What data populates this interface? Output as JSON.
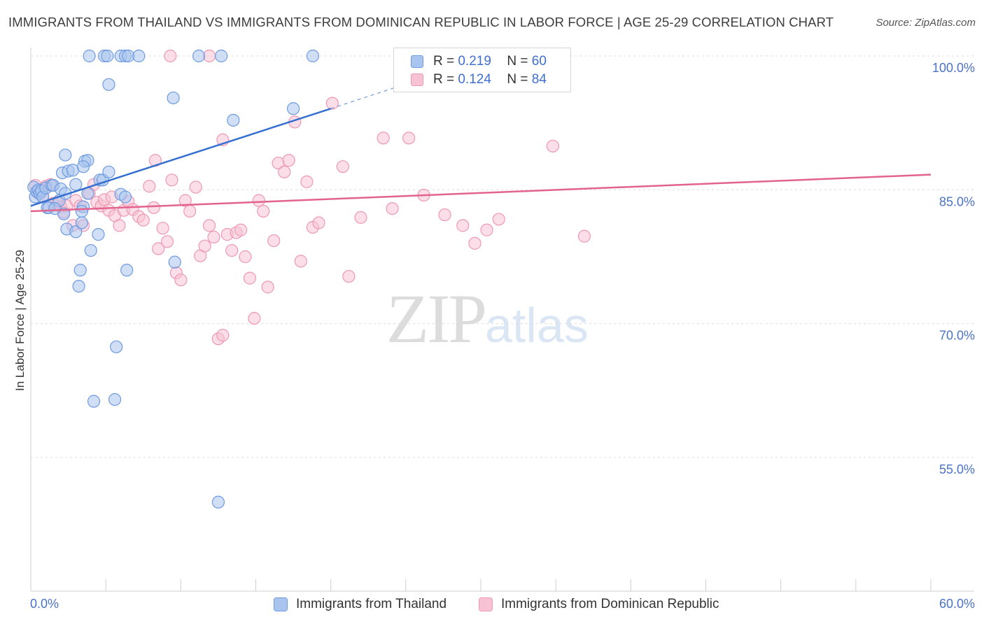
{
  "header": {
    "title": "IMMIGRANTS FROM THAILAND VS IMMIGRANTS FROM DOMINICAN REPUBLIC IN LABOR FORCE | AGE 25-29 CORRELATION CHART",
    "source": "Source: ZipAtlas.com"
  },
  "legend": {
    "series1": {
      "r_label": "R =",
      "r_value": "0.219",
      "n_label": "N =",
      "n_value": "60"
    },
    "series2": {
      "r_label": "R =",
      "r_value": "0.124",
      "n_label": "N =",
      "n_value": "84"
    }
  },
  "bottom_legend": {
    "series1": "Immigrants from Thailand",
    "series2": "Immigrants from Dominican Republic"
  },
  "watermark": {
    "zip": "ZIP",
    "atlas": "atlas"
  },
  "colors": {
    "thailand_fill": "#a9c5ef",
    "thailand_stroke": "#6e9be0",
    "thailand_line": "#3570d1",
    "dominican_fill": "#f7c3d4",
    "dominican_stroke": "#ee98b4",
    "dominican_line": "#e2638e",
    "axis_text": "#4a72c4"
  },
  "chart_data": {
    "type": "scatter",
    "title": "IMMIGRANTS FROM THAILAND VS IMMIGRANTS FROM DOMINICAN REPUBLIC IN LABOR FORCE | AGE 25-29 CORRELATION CHART",
    "xlabel": "",
    "ylabel": "In Labor Force | Age 25-29",
    "xlim": [
      0,
      60
    ],
    "ylim": [
      40,
      102
    ],
    "x_tick_labels": [
      "0.0%",
      "60.0%"
    ],
    "y_ticks": [
      55,
      70,
      85,
      100
    ],
    "y_tick_labels": [
      "55.0%",
      "70.0%",
      "85.0%",
      "100.0%"
    ],
    "grid": true,
    "series": [
      {
        "name": "Immigrants from Thailand",
        "R": 0.219,
        "N": 60,
        "trend": {
          "x": [
            0.0,
            20.0
          ],
          "y": [
            83.2,
            94.1
          ],
          "dashed_to": [
            26.0,
            97.4
          ]
        },
        "points": [
          [
            0.2,
            85.3
          ],
          [
            0.3,
            84.2
          ],
          [
            0.4,
            84.8
          ],
          [
            0.5,
            85.0
          ],
          [
            0.6,
            84.6
          ],
          [
            0.7,
            84.9
          ],
          [
            0.8,
            84.2
          ],
          [
            1.1,
            83.0
          ],
          [
            1.2,
            83.0
          ],
          [
            1.0,
            85.2
          ],
          [
            1.4,
            85.5
          ],
          [
            1.5,
            85.5
          ],
          [
            1.9,
            83.8
          ],
          [
            2.0,
            85.1
          ],
          [
            2.1,
            86.9
          ],
          [
            2.3,
            84.6
          ],
          [
            2.2,
            82.3
          ],
          [
            2.4,
            80.6
          ],
          [
            2.3,
            88.9
          ],
          [
            2.5,
            87.1
          ],
          [
            2.8,
            87.2
          ],
          [
            3.0,
            85.6
          ],
          [
            3.6,
            88.2
          ],
          [
            3.8,
            88.3
          ],
          [
            3.5,
            87.6
          ],
          [
            3.0,
            80.3
          ],
          [
            3.3,
            76.0
          ],
          [
            3.2,
            74.2
          ],
          [
            3.4,
            81.3
          ],
          [
            3.5,
            83.1
          ],
          [
            3.4,
            82.6
          ],
          [
            3.8,
            84.6
          ],
          [
            4.0,
            78.2
          ],
          [
            4.2,
            61.3
          ],
          [
            4.5,
            80.0
          ],
          [
            4.6,
            86.1
          ],
          [
            4.8,
            86.1
          ],
          [
            5.2,
            87.0
          ],
          [
            6.0,
            84.5
          ],
          [
            6.3,
            84.2
          ],
          [
            6.4,
            76.0
          ],
          [
            5.7,
            67.4
          ],
          [
            5.6,
            61.5
          ],
          [
            5.2,
            96.8
          ],
          [
            3.9,
            100.0
          ],
          [
            4.9,
            100.0
          ],
          [
            5.1,
            100.0
          ],
          [
            6.0,
            100.0
          ],
          [
            6.3,
            100.0
          ],
          [
            6.5,
            100.0
          ],
          [
            7.2,
            100.0
          ],
          [
            9.5,
            95.3
          ],
          [
            9.6,
            76.9
          ],
          [
            11.2,
            100.0
          ],
          [
            12.7,
            100.0
          ],
          [
            12.5,
            50.0
          ],
          [
            13.5,
            92.8
          ],
          [
            17.5,
            94.1
          ],
          [
            18.8,
            100.0
          ],
          [
            1.6,
            82.9
          ]
        ]
      },
      {
        "name": "Immigrants from Dominican Republic",
        "R": 0.124,
        "N": 84,
        "trend": {
          "x": [
            0.0,
            60.0
          ],
          "y": [
            82.6,
            86.7
          ]
        },
        "points": [
          [
            0.3,
            85.5
          ],
          [
            0.5,
            84.6
          ],
          [
            0.6,
            85.0
          ],
          [
            0.8,
            84.3
          ],
          [
            1.0,
            85.4
          ],
          [
            1.3,
            85.6
          ],
          [
            1.5,
            83.5
          ],
          [
            1.8,
            83.6
          ],
          [
            2.0,
            83.1
          ],
          [
            2.2,
            82.5
          ],
          [
            2.4,
            83.2
          ],
          [
            2.8,
            81.0
          ],
          [
            3.0,
            83.8
          ],
          [
            3.3,
            83.2
          ],
          [
            3.5,
            81.0
          ],
          [
            3.9,
            84.6
          ],
          [
            4.2,
            85.6
          ],
          [
            4.4,
            83.6
          ],
          [
            4.7,
            83.2
          ],
          [
            4.9,
            83.9
          ],
          [
            5.2,
            82.7
          ],
          [
            5.4,
            84.2
          ],
          [
            5.6,
            82.1
          ],
          [
            5.9,
            81.0
          ],
          [
            6.2,
            82.7
          ],
          [
            6.5,
            83.7
          ],
          [
            6.8,
            82.8
          ],
          [
            7.2,
            82.0
          ],
          [
            7.5,
            81.6
          ],
          [
            7.9,
            85.4
          ],
          [
            8.2,
            83.0
          ],
          [
            8.5,
            78.4
          ],
          [
            8.8,
            80.7
          ],
          [
            9.1,
            79.2
          ],
          [
            9.4,
            86.1
          ],
          [
            9.7,
            75.7
          ],
          [
            10.0,
            74.9
          ],
          [
            10.3,
            83.8
          ],
          [
            10.6,
            82.6
          ],
          [
            11.0,
            85.3
          ],
          [
            11.3,
            77.6
          ],
          [
            11.6,
            78.7
          ],
          [
            11.9,
            81.0
          ],
          [
            12.2,
            79.7
          ],
          [
            12.5,
            68.3
          ],
          [
            12.8,
            68.7
          ],
          [
            13.1,
            80.0
          ],
          [
            13.4,
            78.2
          ],
          [
            13.7,
            80.2
          ],
          [
            14.0,
            80.5
          ],
          [
            14.3,
            77.5
          ],
          [
            14.6,
            75.1
          ],
          [
            14.9,
            70.6
          ],
          [
            15.2,
            83.8
          ],
          [
            15.5,
            82.6
          ],
          [
            15.8,
            74.1
          ],
          [
            16.2,
            79.3
          ],
          [
            16.5,
            88.0
          ],
          [
            16.9,
            87.0
          ],
          [
            17.2,
            88.3
          ],
          [
            17.6,
            92.6
          ],
          [
            18.0,
            77.0
          ],
          [
            18.4,
            85.9
          ],
          [
            18.8,
            80.8
          ],
          [
            19.2,
            81.3
          ],
          [
            20.1,
            94.7
          ],
          [
            20.8,
            87.6
          ],
          [
            21.2,
            75.3
          ],
          [
            22.0,
            81.9
          ],
          [
            23.5,
            90.8
          ],
          [
            24.1,
            82.9
          ],
          [
            25.2,
            90.8
          ],
          [
            26.2,
            84.4
          ],
          [
            27.6,
            82.2
          ],
          [
            28.8,
            81.0
          ],
          [
            29.6,
            79.0
          ],
          [
            30.4,
            80.5
          ],
          [
            31.2,
            81.7
          ],
          [
            34.8,
            89.9
          ],
          [
            36.9,
            79.8
          ],
          [
            8.3,
            88.3
          ],
          [
            12.8,
            90.6
          ],
          [
            9.3,
            100.0
          ],
          [
            11.9,
            100.0
          ]
        ]
      }
    ]
  }
}
